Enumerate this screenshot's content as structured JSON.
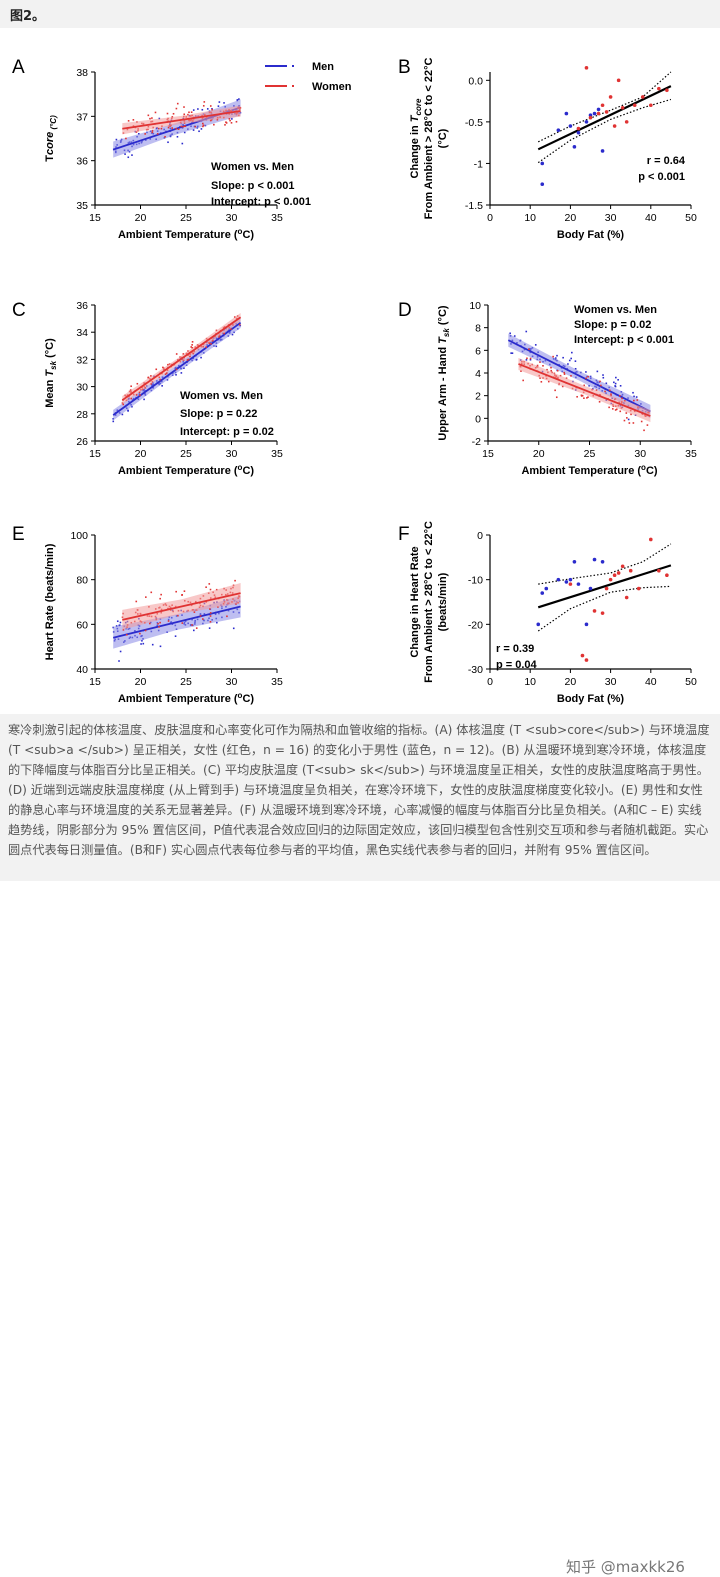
{
  "header": {
    "title": "图2。"
  },
  "colors": {
    "men": "#2b2bcc",
    "women": "#e03333",
    "men_band": "#8888e6",
    "women_band": "#f29a9a"
  },
  "panels": [
    {
      "id": "A",
      "letter": "A"
    },
    {
      "id": "B",
      "letter": "B"
    },
    {
      "id": "C",
      "letter": "C"
    },
    {
      "id": "D",
      "letter": "D"
    },
    {
      "id": "E",
      "letter": "E"
    },
    {
      "id": "F",
      "letter": "F"
    }
  ],
  "legend": {
    "men": "Men",
    "women": "Women"
  },
  "chart_data": [
    {
      "id": "A",
      "type": "scatter",
      "xlabel": "Ambient Temperature (°C)",
      "ylabel": [
        "T",
        "core",
        " (°C)"
      ],
      "xlim": [
        15,
        35
      ],
      "ylim": [
        35,
        38
      ],
      "xticks": [
        15,
        20,
        25,
        30,
        35
      ],
      "yticks": [
        35,
        36,
        37,
        38
      ],
      "series": [
        {
          "name": "Men",
          "line": [
            [
              17,
              36.25
            ],
            [
              31,
              37.2
            ]
          ],
          "band": 0.13
        },
        {
          "name": "Women",
          "line": [
            [
              18,
              36.72
            ],
            [
              31,
              37.12
            ]
          ],
          "band": 0.09
        }
      ],
      "annotations": [
        "Women vs. Men",
        "Slope: p < 0.001",
        "Intercept: p < 0.001"
      ]
    },
    {
      "id": "B",
      "type": "scatter",
      "xlabel": "Body Fat (%)",
      "ylabel": [
        "Change in ",
        "T",
        "core",
        "",
        "From Ambient > 28°C to < 22°C",
        "(°C)"
      ],
      "xlim": [
        0,
        50
      ],
      "ylim": [
        -1.5,
        0.1
      ],
      "xticks": [
        0,
        10,
        20,
        30,
        40,
        50
      ],
      "yticks": [
        -1.5,
        -1.0,
        -0.5,
        0.0
      ],
      "fit": [
        [
          12,
          -0.83
        ],
        [
          45,
          -0.07
        ]
      ],
      "ci_upper": [
        [
          12,
          -0.74
        ],
        [
          20,
          -0.55
        ],
        [
          30,
          -0.36
        ],
        [
          38,
          -0.2
        ],
        [
          45,
          0.1
        ]
      ],
      "ci_lower": [
        [
          12,
          -0.99
        ],
        [
          20,
          -0.72
        ],
        [
          30,
          -0.47
        ],
        [
          38,
          -0.33
        ],
        [
          45,
          -0.23
        ]
      ],
      "men_points": [
        [
          13,
          -1.25
        ],
        [
          13,
          -1.0
        ],
        [
          17,
          -0.6
        ],
        [
          19,
          -0.4
        ],
        [
          20,
          -0.55
        ],
        [
          21,
          -0.8
        ],
        [
          24,
          -0.5
        ],
        [
          26,
          -0.4
        ],
        [
          28,
          -0.85
        ],
        [
          25,
          -0.42
        ],
        [
          27,
          -0.35
        ],
        [
          22,
          -0.63
        ]
      ],
      "women_points": [
        [
          22,
          -0.58
        ],
        [
          24,
          0.15
        ],
        [
          25,
          -0.45
        ],
        [
          27,
          -0.4
        ],
        [
          28,
          -0.3
        ],
        [
          30,
          -0.2
        ],
        [
          31,
          -0.55
        ],
        [
          32,
          0.0
        ],
        [
          34,
          -0.5
        ],
        [
          36,
          -0.3
        ],
        [
          38,
          -0.2
        ],
        [
          40,
          -0.3
        ],
        [
          42,
          -0.1
        ],
        [
          44,
          -0.12
        ],
        [
          29,
          -0.38
        ],
        [
          33,
          -0.33
        ]
      ],
      "annotations": [
        "r = 0.64",
        "p < 0.001"
      ]
    },
    {
      "id": "C",
      "type": "scatter",
      "xlabel": "Ambient Temperature (°C)",
      "ylabel": [
        "Mean ",
        "T",
        "sk",
        " (°C)"
      ],
      "xlim": [
        15,
        35
      ],
      "ylim": [
        26,
        36
      ],
      "xticks": [
        15,
        20,
        25,
        30,
        35
      ],
      "yticks": [
        26,
        28,
        30,
        32,
        34,
        36
      ],
      "series": [
        {
          "name": "Men",
          "line": [
            [
              17,
              27.9
            ],
            [
              31,
              34.7
            ]
          ],
          "band": 0.28
        },
        {
          "name": "Women",
          "line": [
            [
              18,
              29.0
            ],
            [
              31,
              35.1
            ]
          ],
          "band": 0.22
        }
      ],
      "annotations": [
        "Women vs. Men",
        "Slope: p = 0.22",
        "Intercept: p = 0.02"
      ]
    },
    {
      "id": "D",
      "type": "scatter",
      "xlabel": "Ambient Temperature (°C)",
      "ylabel": [
        "Upper Arm - Hand ",
        "T",
        "sk",
        " (°C)"
      ],
      "xlim": [
        15,
        35
      ],
      "ylim": [
        -2,
        10
      ],
      "xticks": [
        15,
        20,
        25,
        30,
        35
      ],
      "yticks": [
        -2,
        0,
        2,
        4,
        6,
        8,
        10
      ],
      "series": [
        {
          "name": "Men",
          "line": [
            [
              17,
              6.9
            ],
            [
              31,
              0.6
            ]
          ],
          "band": 0.42
        },
        {
          "name": "Women",
          "line": [
            [
              18,
              4.8
            ],
            [
              31,
              0.2
            ]
          ],
          "band": 0.38
        }
      ],
      "annotations": [
        "Women vs. Men",
        "Slope: p = 0.02",
        "Intercept: p < 0.001"
      ]
    },
    {
      "id": "E",
      "type": "scatter",
      "xlabel": "Ambient Temperature (°C)",
      "ylabel": [
        "Heart Rate (beats/min)"
      ],
      "xlim": [
        15,
        35
      ],
      "ylim": [
        40,
        100
      ],
      "xticks": [
        15,
        20,
        25,
        30,
        35
      ],
      "yticks": [
        40,
        60,
        80,
        100
      ],
      "series": [
        {
          "name": "Men",
          "line": [
            [
              17,
              54
            ],
            [
              31,
              68
            ]
          ],
          "band": 3.5
        },
        {
          "name": "Women",
          "line": [
            [
              18,
              62
            ],
            [
              31,
              74
            ]
          ],
          "band": 3.2
        }
      ],
      "annotations": []
    },
    {
      "id": "F",
      "type": "scatter",
      "xlabel": "Body Fat (%)",
      "ylabel": [
        "Change in Heart Rate",
        "From Ambient > 28°C to < 22°C",
        "(beats/min)"
      ],
      "xlim": [
        0,
        50
      ],
      "ylim": [
        -30,
        0
      ],
      "xticks": [
        0,
        10,
        20,
        30,
        40,
        50
      ],
      "yticks": [
        -30,
        -20,
        -10,
        0
      ],
      "fit": [
        [
          12,
          -16.2
        ],
        [
          45,
          -6.8
        ]
      ],
      "ci_upper": [
        [
          12,
          -11
        ],
        [
          20,
          -9.8
        ],
        [
          30,
          -8.5
        ],
        [
          38,
          -6
        ],
        [
          45,
          -2
        ]
      ],
      "ci_lower": [
        [
          12,
          -21.5
        ],
        [
          20,
          -16.5
        ],
        [
          30,
          -12.8
        ],
        [
          38,
          -11.8
        ],
        [
          45,
          -11.5
        ]
      ],
      "men_points": [
        [
          12,
          -20
        ],
        [
          13,
          -13
        ],
        [
          14,
          -12
        ],
        [
          17,
          -10
        ],
        [
          19,
          -10.5
        ],
        [
          20,
          -10
        ],
        [
          21,
          -6
        ],
        [
          22,
          -11
        ],
        [
          24,
          -20
        ],
        [
          26,
          -5.5
        ],
        [
          28,
          -6
        ],
        [
          25,
          -12
        ]
      ],
      "women_points": [
        [
          20,
          -11
        ],
        [
          23,
          -27
        ],
        [
          24,
          -28
        ],
        [
          26,
          -17
        ],
        [
          28,
          -17.5
        ],
        [
          29,
          -12
        ],
        [
          31,
          -9
        ],
        [
          32,
          -8.5
        ],
        [
          34,
          -14
        ],
        [
          35,
          -8
        ],
        [
          37,
          -12
        ],
        [
          40,
          -1
        ],
        [
          42,
          -8
        ],
        [
          44,
          -9
        ],
        [
          33,
          -7
        ],
        [
          30,
          -10
        ]
      ],
      "annotations": [
        "r = 0.39",
        "p = 0.04"
      ]
    }
  ],
  "caption": {
    "text": "寒冷刺激引起的体核温度、皮肤温度和心率变化可作为隔热和血管收缩的指标。(A) 体核温度 (T <sub>core</sub>) 与环境温度 (T <sub>a </sub>) 呈正相关，女性 (红色，n = 16) 的变化小于男性 (蓝色，n = 12)。(B) 从温暖环境到寒冷环境，体核温度的下降幅度与体脂百分比呈正相关。(C) 平均皮肤温度 (T<sub> sk</sub>) 与环境温度呈正相关，女性的皮肤温度略高于男性。(D) 近端到远端皮肤温度梯度 (从上臂到手) 与环境温度呈负相关，在寒冷环境下，女性的皮肤温度梯度变化较小。(E) 男性和女性的静息心率与环境温度的关系无显著差异。(F) 从温暖环境到寒冷环境，心率减慢的幅度与体脂百分比呈负相关。(A和C – E) 实线趋势线，阴影部分为 95% 置信区间，P值代表混合效应回归的边际固定效应，该回归模型包含性别交互项和参与者随机截距。实心圆点代表每日测量值。(B和F) 实心圆点代表每位参与者的平均值，黑色实线代表参与者的回归，并附有 95% 置信区间。",
    "watermark": "知乎 @maxkk26"
  }
}
